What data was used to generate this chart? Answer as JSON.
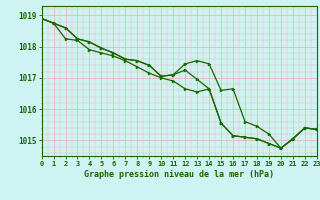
{
  "title": "Graphe pression niveau de la mer (hPa)",
  "hours": [
    0,
    1,
    2,
    3,
    4,
    5,
    6,
    7,
    8,
    9,
    10,
    11,
    12,
    13,
    14,
    15,
    16,
    17,
    18,
    19,
    20,
    21,
    22,
    23
  ],
  "line1": [
    1018.9,
    1018.75,
    1018.6,
    1018.25,
    1018.15,
    1017.95,
    1017.8,
    1017.6,
    1017.55,
    1017.4,
    1017.05,
    1017.1,
    1017.25,
    1016.95,
    1016.65,
    1015.55,
    1015.15,
    1015.1,
    1015.05,
    1014.9,
    1014.75,
    1015.05,
    1015.4,
    1015.35
  ],
  "line2": [
    1018.9,
    1018.75,
    1018.6,
    1018.25,
    1018.15,
    1017.95,
    1017.8,
    1017.6,
    1017.55,
    1017.4,
    1017.05,
    1017.1,
    1017.45,
    1017.55,
    1017.45,
    1016.6,
    1016.65,
    1015.6,
    1015.45,
    1015.2,
    1014.75,
    1015.05,
    1015.4,
    1015.35
  ],
  "line3": [
    1018.9,
    1018.75,
    1018.25,
    1018.2,
    1017.9,
    1017.8,
    1017.7,
    1017.55,
    1017.35,
    1017.15,
    1017.0,
    1016.9,
    1016.65,
    1016.55,
    1016.65,
    1015.55,
    1015.15,
    1015.1,
    1015.05,
    1014.9,
    1014.75,
    1015.05,
    1015.4,
    1015.35
  ],
  "bg_color": "#cff2f2",
  "plot_bg_color": "#cff2f2",
  "line_color": "#1a6600",
  "grid_color_major": "#e8b8b8",
  "grid_color_minor": "#e8b8b8",
  "ylim_min": 1014.5,
  "ylim_max": 1019.3,
  "yticks": [
    1015,
    1016,
    1017,
    1018,
    1019
  ],
  "marker_size": 2.0,
  "linewidth": 0.9
}
